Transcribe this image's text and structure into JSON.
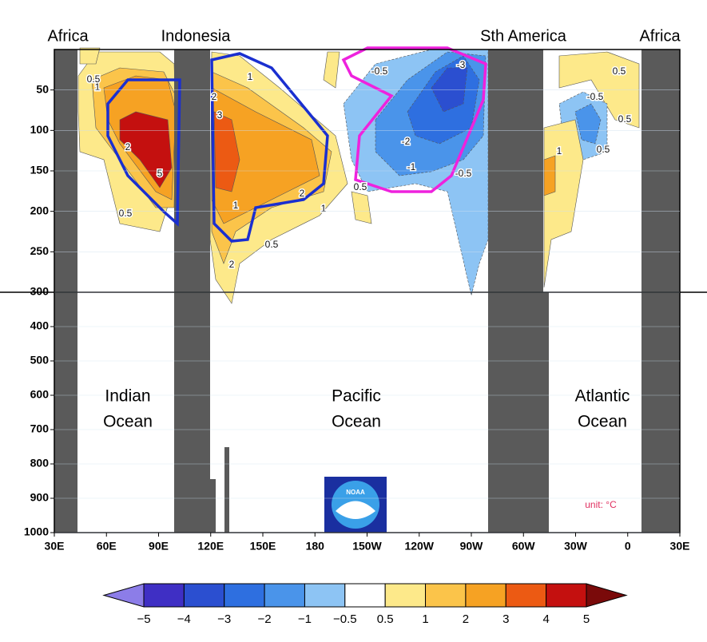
{
  "chart_data": {
    "type": "contour",
    "region_labels": [
      "Africa",
      "Indonesia",
      "Sth America",
      "Africa"
    ],
    "ocean_labels": [
      [
        "Indian",
        "Ocean"
      ],
      [
        "Pacific",
        "Ocean"
      ],
      [
        "Atlantic",
        "Ocean"
      ]
    ],
    "unit_label": "unit: °C",
    "logo_text": "NOAA",
    "xlim": [
      30,
      390
    ],
    "xticks": [
      {
        "value": 30,
        "label": "30E"
      },
      {
        "value": 60,
        "label": "60E"
      },
      {
        "value": 90,
        "label": "90E"
      },
      {
        "value": 120,
        "label": "120E"
      },
      {
        "value": 150,
        "label": "150E"
      },
      {
        "value": 180,
        "label": "180"
      },
      {
        "value": 210,
        "label": "150W"
      },
      {
        "value": 240,
        "label": "120W"
      },
      {
        "value": 270,
        "label": "90W"
      },
      {
        "value": 300,
        "label": "60W"
      },
      {
        "value": 330,
        "label": "30W"
      },
      {
        "value": 360,
        "label": "0"
      },
      {
        "value": 390,
        "label": "30E"
      }
    ],
    "ylim": [
      0,
      1000
    ],
    "y_break": 300,
    "yticks": [
      50,
      100,
      150,
      200,
      250,
      300,
      400,
      500,
      600,
      700,
      800,
      900,
      1000
    ],
    "levels": [
      {
        "value": -5,
        "label": "−5"
      },
      {
        "value": -4,
        "label": "−4"
      },
      {
        "value": -3,
        "label": "−3"
      },
      {
        "value": -2,
        "label": "−2"
      },
      {
        "value": -1,
        "label": "−1"
      },
      {
        "value": -0.5,
        "label": "−0.5"
      },
      0.5,
      1,
      2,
      3,
      4,
      5
    ],
    "level_colors": [
      "#8c7de8",
      "#3f2fc4",
      "#2b4fd0",
      "#2e6fe0",
      "#4a94ea",
      "#8dc4f4",
      "#ffffff",
      "#fde98a",
      "#fbc44a",
      "#f6a223",
      "#ec5a13",
      "#c4100f",
      "#7a0a0a"
    ],
    "contour_labels": [
      0.5,
      1,
      2,
      5,
      0.5,
      1,
      2,
      3,
      2,
      1,
      0.5,
      1,
      2,
      -0.5,
      -3,
      -2,
      -1,
      -0.5,
      0.5,
      -0.5,
      0.5,
      0.5,
      1,
      0.5
    ]
  }
}
